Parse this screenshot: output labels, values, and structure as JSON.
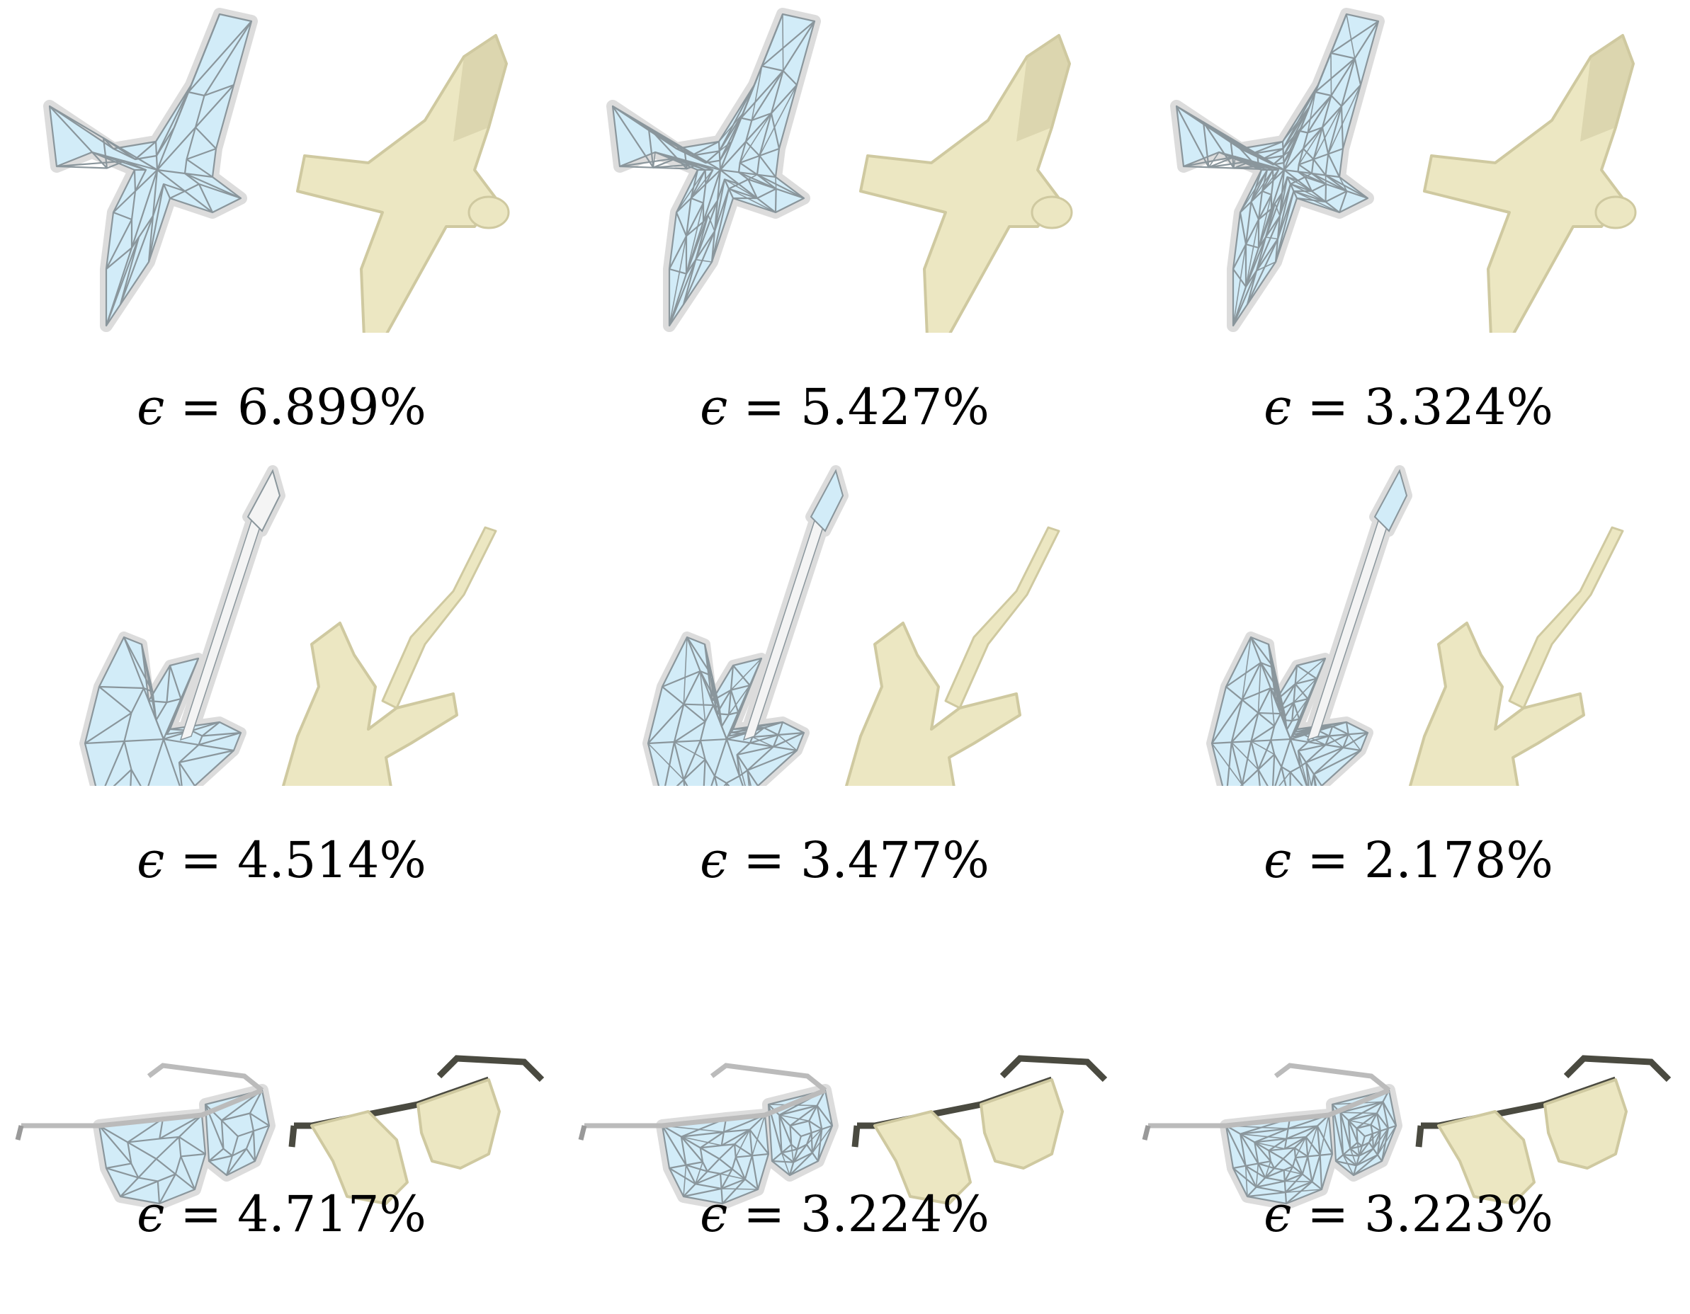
{
  "figure": {
    "panels": [
      {
        "shape": "bird",
        "symbol": "ϵ",
        "operator": "=",
        "value": "6.899%"
      },
      {
        "shape": "bird",
        "symbol": "ϵ",
        "operator": "=",
        "value": "5.427%"
      },
      {
        "shape": "bird",
        "symbol": "ϵ",
        "operator": "=",
        "value": "3.324%"
      },
      {
        "shape": "guitar",
        "symbol": "ϵ",
        "operator": "=",
        "value": "4.514%"
      },
      {
        "shape": "guitar",
        "symbol": "ϵ",
        "operator": "=",
        "value": "3.477%"
      },
      {
        "shape": "guitar",
        "symbol": "ϵ",
        "operator": "=",
        "value": "2.178%"
      },
      {
        "shape": "glasses",
        "symbol": "ϵ",
        "operator": "=",
        "value": "4.717%"
      },
      {
        "shape": "glasses",
        "symbol": "ϵ",
        "operator": "=",
        "value": "3.224%"
      },
      {
        "shape": "glasses",
        "symbol": "ϵ",
        "operator": "=",
        "value": "3.223%"
      }
    ],
    "colors": {
      "mesh_fill": "#d2ecf8",
      "mesh_edges": "#8a969c",
      "envelope": "#eeeeee",
      "solid_fill": "#ece7c2",
      "solid_shade": "#cfc9a0",
      "temple_dark": "#4a4a40"
    }
  }
}
